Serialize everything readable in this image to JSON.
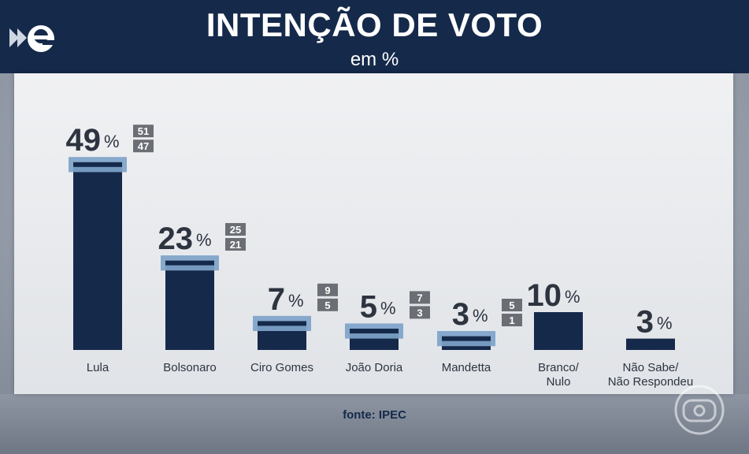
{
  "header": {
    "title": "INTENÇÃO DE VOTO",
    "subtitle": "em %"
  },
  "footer": {
    "source": "fonte: IPEC"
  },
  "logo_icon": "e-arrow-logo-icon",
  "watermark_icon": "tv-globo-icon",
  "colors": {
    "header_bg": "#15294a",
    "bar": "#15294a",
    "margin_band": "#7ea3c9",
    "range_box": "#6b6e74",
    "label_text": "#2d3440"
  },
  "chart_data": {
    "type": "bar",
    "title": "INTENÇÃO DE VOTO",
    "subtitle": "em %",
    "categories": [
      "Lula",
      "Bolsonaro",
      "Ciro Gomes",
      "João Doria",
      "Mandetta",
      "Branco/ Nulo",
      "Não Sabe/ Não Respondeu"
    ],
    "category_lines": [
      [
        "Lula"
      ],
      [
        "Bolsonaro"
      ],
      [
        "Ciro Gomes"
      ],
      [
        "João Doria"
      ],
      [
        "Mandetta"
      ],
      [
        "Branco/",
        "Nulo"
      ],
      [
        "Não Sabe/",
        "Não Respondeu"
      ]
    ],
    "values": [
      49,
      23,
      7,
      5,
      3,
      10,
      3
    ],
    "value_suffix": "%",
    "ranges": [
      [
        51,
        47
      ],
      [
        25,
        21
      ],
      [
        9,
        5
      ],
      [
        7,
        3
      ],
      [
        5,
        1
      ],
      null,
      null
    ],
    "ylim": [
      0,
      55
    ],
    "xlabel": "",
    "ylabel": "",
    "source": "fonte: IPEC"
  }
}
